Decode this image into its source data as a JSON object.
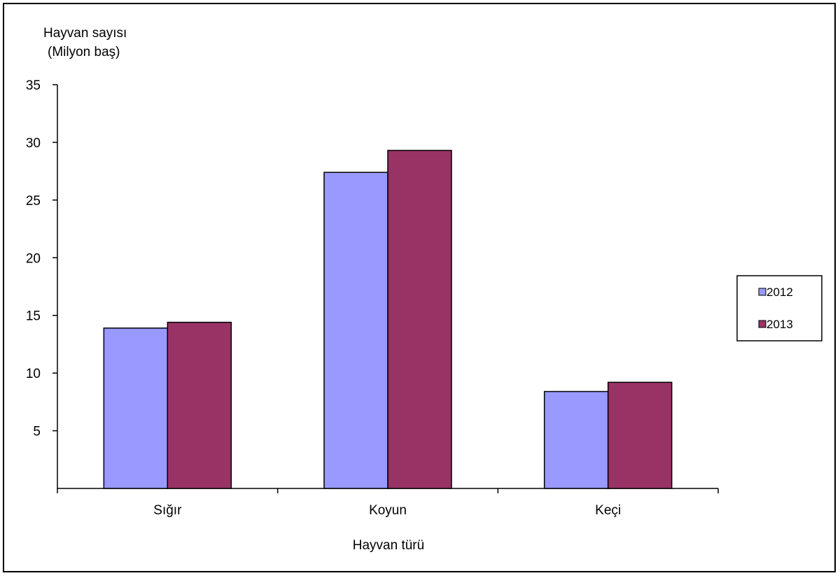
{
  "chart_data": {
    "type": "bar",
    "ylabel_line1": "Hayvan sayısı",
    "ylabel_line2": "(Milyon baş)",
    "xlabel": "Hayvan türü",
    "categories": [
      "Sığır",
      "Koyun",
      "Keçi"
    ],
    "series": [
      {
        "name": "2012",
        "values": [
          13.9,
          27.4,
          8.4
        ],
        "color": "#9999ff"
      },
      {
        "name": "2013",
        "values": [
          14.4,
          29.3,
          9.2
        ],
        "color": "#993366"
      }
    ],
    "ylim": [
      0,
      35
    ],
    "yticks": [
      5,
      10,
      15,
      20,
      25,
      30,
      35
    ],
    "grid": false,
    "legend_position": "right"
  }
}
